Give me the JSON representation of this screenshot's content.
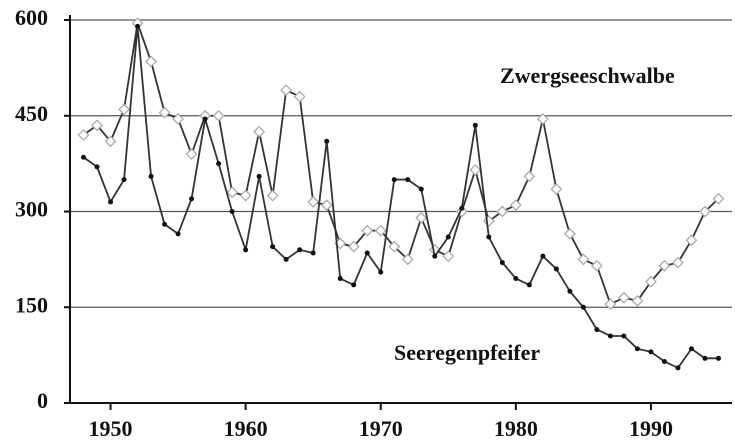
{
  "chart_data": {
    "type": "line",
    "x": [
      1948,
      1949,
      1950,
      1951,
      1952,
      1953,
      1954,
      1955,
      1956,
      1957,
      1958,
      1959,
      1960,
      1961,
      1962,
      1963,
      1964,
      1965,
      1966,
      1967,
      1968,
      1969,
      1970,
      1971,
      1972,
      1973,
      1974,
      1975,
      1976,
      1977,
      1978,
      1979,
      1980,
      1981,
      1982,
      1983,
      1984,
      1985,
      1986,
      1987,
      1988,
      1989,
      1990,
      1991,
      1992,
      1993,
      1994,
      1995
    ],
    "series": [
      {
        "name": "Zwergseeschwalbe",
        "color": "#333333",
        "marker": "diamond",
        "values": [
          420,
          435,
          410,
          460,
          595,
          535,
          455,
          445,
          390,
          450,
          450,
          330,
          325,
          425,
          325,
          490,
          480,
          315,
          310,
          250,
          245,
          270,
          270,
          245,
          225,
          290,
          240,
          230,
          300,
          365,
          285,
          300,
          310,
          355,
          445,
          335,
          265,
          225,
          215,
          155,
          165,
          160,
          190,
          215,
          220,
          255,
          300,
          320
        ]
      },
      {
        "name": "Seeregenpfeifer",
        "color": "#333333",
        "marker": "dot",
        "values": [
          385,
          370,
          315,
          350,
          590,
          355,
          280,
          265,
          320,
          445,
          375,
          300,
          240,
          355,
          245,
          225,
          240,
          235,
          410,
          195,
          185,
          235,
          205,
          350,
          350,
          335,
          230,
          260,
          305,
          435,
          260,
          220,
          195,
          185,
          230,
          210,
          175,
          150,
          115,
          105,
          105,
          85,
          80,
          65,
          55,
          85,
          70,
          70
        ]
      }
    ],
    "xlim": [
      1947,
      1996
    ],
    "xticks": [
      1950,
      1960,
      1970,
      1980,
      1990
    ],
    "ylim": [
      0,
      600
    ],
    "yticks": [
      0,
      150,
      300,
      450,
      600
    ],
    "grid": true
  }
}
